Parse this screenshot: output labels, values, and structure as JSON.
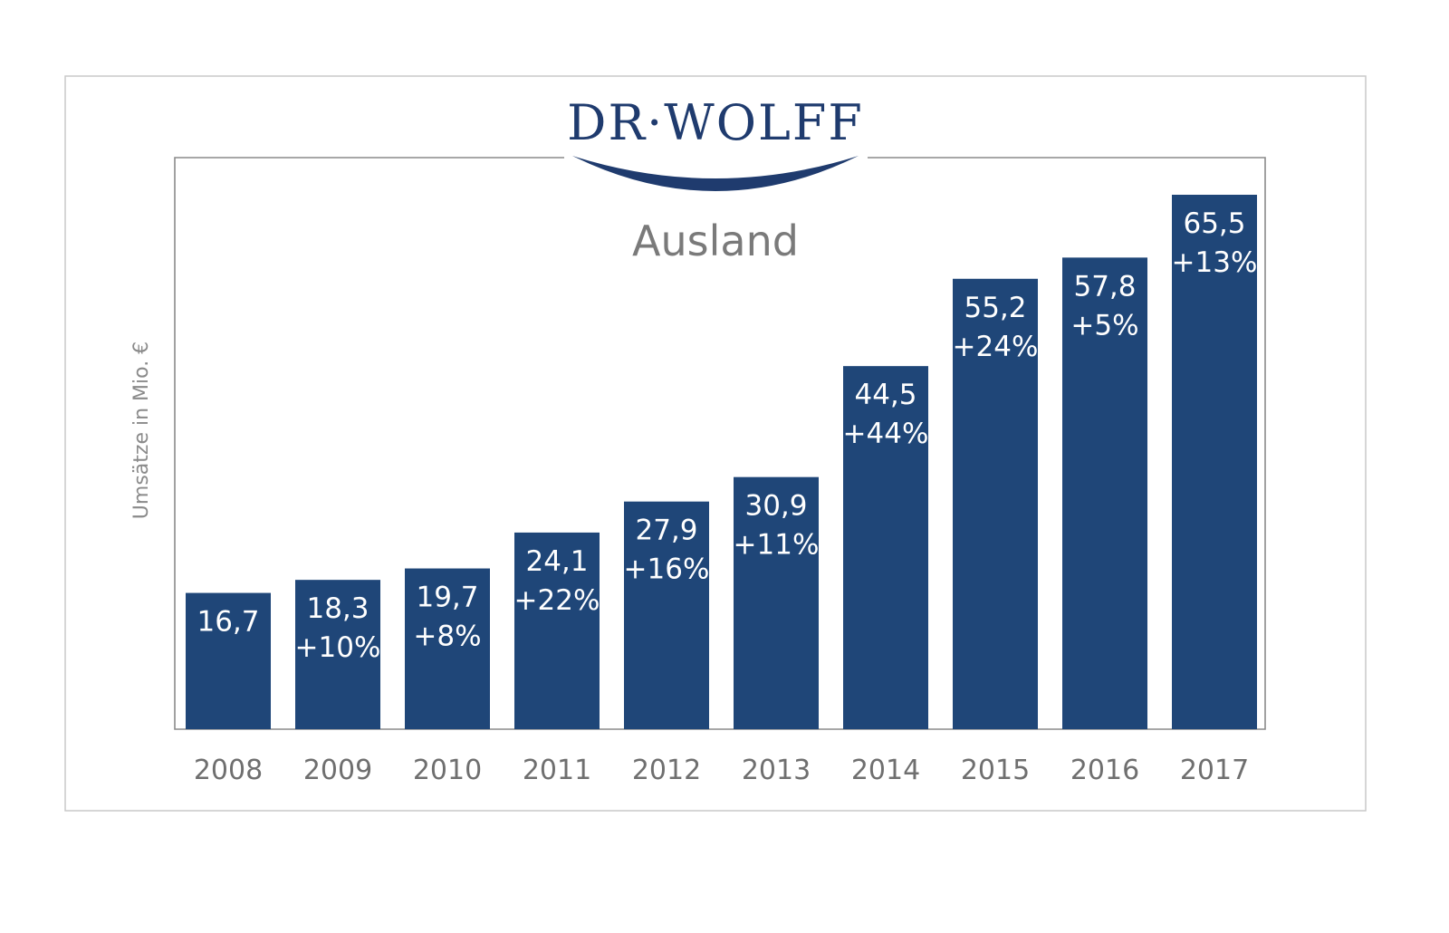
{
  "logo": {
    "text": "DR·WOLFF"
  },
  "chart_data": {
    "type": "bar",
    "title": "Ausland",
    "ylabel": "Umsätze in Mio. €",
    "xlabel": "",
    "categories": [
      "2008",
      "2009",
      "2010",
      "2011",
      "2012",
      "2013",
      "2014",
      "2015",
      "2016",
      "2017"
    ],
    "values": [
      16.7,
      18.3,
      19.7,
      24.1,
      27.9,
      30.9,
      44.5,
      55.2,
      57.8,
      65.5
    ],
    "value_labels": [
      "16,7",
      "18,3",
      "19,7",
      "24,1",
      "27,9",
      "30,9",
      "44,5",
      "55,2",
      "57,8",
      "65,5"
    ],
    "growth_labels": [
      "",
      "+10%",
      "+8%",
      "+22%",
      "+16%",
      "+11%",
      "+44%",
      "+24%",
      "+5%",
      "+13%"
    ],
    "ylim": [
      0,
      70
    ],
    "grid": false,
    "legend": "none",
    "colors": {
      "bar": "#1f4678",
      "text_on_bar": "#ffffff",
      "logo": "#1f3b6e"
    }
  }
}
